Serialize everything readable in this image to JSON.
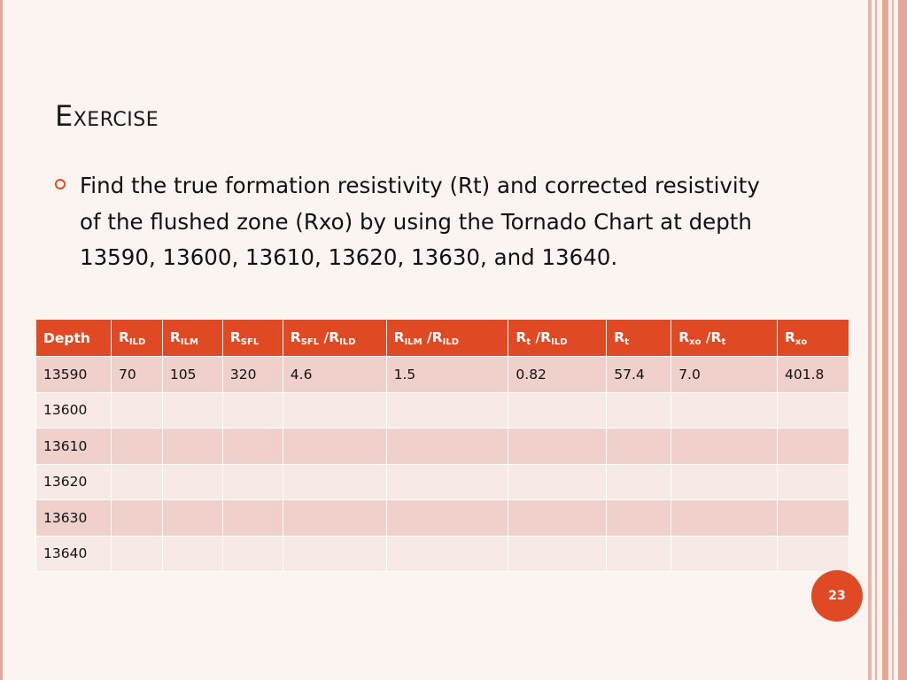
{
  "slide": {
    "title": "Exercise",
    "bullet": "Find the true formation resistivity (Rt) and corrected resistivity of the flushed zone (Rxo) by using the Tornado Chart at depth 13590, 13600, 13610, 13620, 13630, and 13640.",
    "page_number": "23"
  },
  "table": {
    "headers": [
      {
        "main": "Depth",
        "sub": ""
      },
      {
        "main": "R",
        "sub": "ILD"
      },
      {
        "main": "R",
        "sub": "ILM"
      },
      {
        "main": "R",
        "sub": "SFL"
      },
      {
        "main": "R",
        "sub": "SFL",
        "main2": " /R",
        "sub2": "ILD"
      },
      {
        "main": "R",
        "sub": "ILM",
        "main2": " /R",
        "sub2": "ILD"
      },
      {
        "main": "R",
        "sub": "t",
        "main2": " /R",
        "sub2": "ILD"
      },
      {
        "main": "R",
        "sub": "t"
      },
      {
        "main": "R",
        "sub": "xo",
        "main2": " /R",
        "sub2": "t"
      },
      {
        "main": "R",
        "sub": "xo"
      }
    ],
    "rows": [
      [
        "13590",
        "70",
        "105",
        "320",
        "4.6",
        "1.5",
        "0.82",
        "57.4",
        "7.0",
        "401.8"
      ],
      [
        "13600",
        "",
        "",
        "",
        "",
        "",
        "",
        "",
        "",
        ""
      ],
      [
        "13610",
        "",
        "",
        "",
        "",
        "",
        "",
        "",
        "",
        ""
      ],
      [
        "13620",
        "",
        "",
        "",
        "",
        "",
        "",
        "",
        "",
        ""
      ],
      [
        "13630",
        "",
        "",
        "",
        "",
        "",
        "",
        "",
        "",
        ""
      ],
      [
        "13640",
        "",
        "",
        "",
        "",
        "",
        "",
        "",
        "",
        ""
      ]
    ]
  },
  "colors": {
    "accent": "#df4a24",
    "row_dark": "#efd0ca",
    "row_light": "#f6e9e6",
    "background": "#fbf4f1"
  }
}
